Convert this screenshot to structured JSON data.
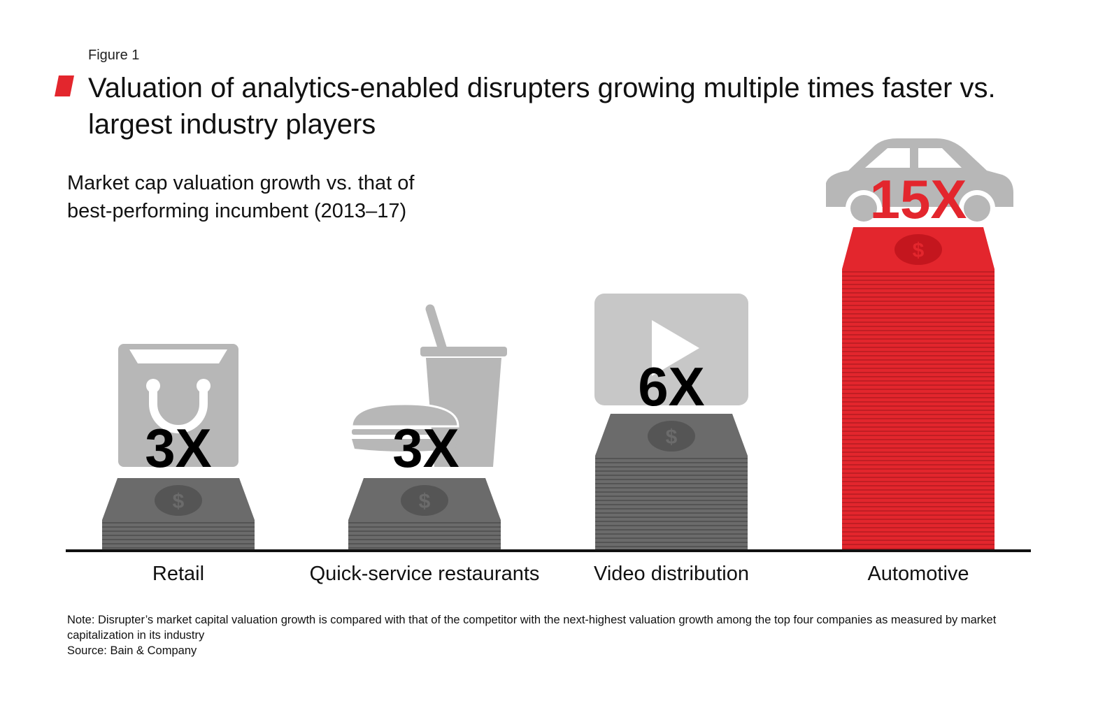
{
  "figure_label": "Figure 1",
  "title": "Valuation of analytics-enabled disrupters growing multiple times faster vs. largest industry players",
  "subtitle": "Market cap valuation growth vs. that of best-performing incumbent (2013–17)",
  "note": "Note: Disrupter’s market capital valuation growth is compared with that of the competitor with the next-highest valuation growth among the top four companies as measured by market capitalization in its industry",
  "source": "Source: Bain & Company",
  "colors": {
    "accent": "#e3262d",
    "money_gray": "#6b6b6b",
    "icon_gray": "#b7b7b7",
    "axis": "#111111"
  },
  "chart_data": {
    "type": "bar",
    "categories": [
      "Retail",
      "Quick-service restaurants",
      "Video distribution",
      "Automotive"
    ],
    "values": [
      3,
      3,
      6,
      15
    ],
    "value_labels": [
      "3X",
      "3X",
      "6X",
      "15X"
    ],
    "icons": [
      "shopping-bag-icon",
      "burger-and-drink-icon",
      "video-play-icon",
      "car-icon"
    ],
    "highlight_index": 3
  }
}
